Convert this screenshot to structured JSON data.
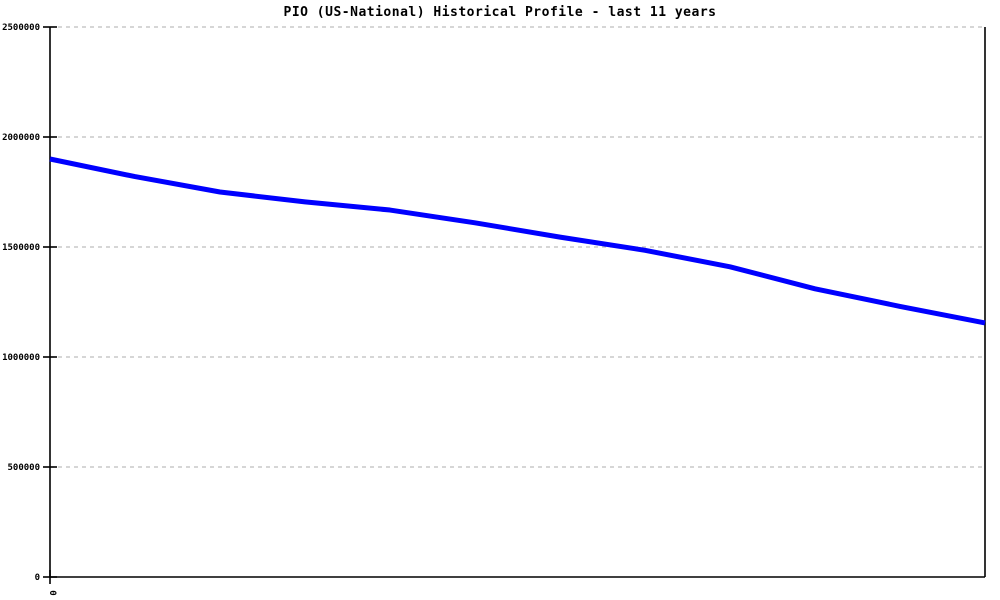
{
  "title": "PIO (US-National) Historical Profile - last 11 years",
  "colors": {
    "background": "#ffffff",
    "line": "#0000ff",
    "grid": "#bdbdbd",
    "axis": "#000000",
    "text": "#000000"
  },
  "chart_data": {
    "type": "line",
    "title": "PIO (US-National) Historical Profile - last 11 years",
    "xlabel": "",
    "ylabel": "",
    "x": [
      0,
      1,
      2,
      3,
      4,
      5,
      6,
      7,
      8,
      9,
      10,
      11
    ],
    "series": [
      {
        "name": "PIO (US-National)",
        "color": "#0000ff",
        "values": [
          1900000,
          1820000,
          1750000,
          1705000,
          1668000,
          1610000,
          1545000,
          1485000,
          1410000,
          1310000,
          1230000,
          1155000
        ]
      }
    ],
    "ylim": [
      0,
      2500000
    ],
    "y_ticks": [
      0,
      500000,
      1000000,
      1500000,
      2000000,
      2500000
    ],
    "y_tick_labels": [
      "0",
      "500000",
      "1000000",
      "1500000",
      "2000000",
      "2500000"
    ],
    "x_tick_labels": [
      "0"
    ],
    "x_tick_label_rotation": 90,
    "grid": "horizontal dashed",
    "legend": "none",
    "line_width": 5
  }
}
